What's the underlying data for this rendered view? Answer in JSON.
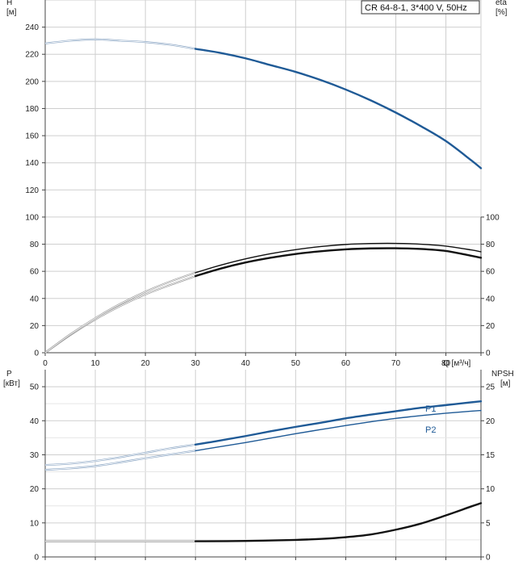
{
  "legend": "CR 64-8-1, 3*400 V, 50Hz",
  "chart_data": [
    {
      "id": "head_efficiency",
      "type": "line",
      "left_axis": {
        "label": "H",
        "unit": "[м]",
        "ylim": [
          0,
          240
        ],
        "ticks": [
          0,
          20,
          40,
          60,
          80,
          100,
          120,
          140,
          160,
          180,
          200,
          220,
          240
        ],
        "grid_to": 260
      },
      "right_axis": {
        "label": "eta",
        "unit": "[%]",
        "ylim": [
          0,
          100
        ],
        "ticks": [
          0,
          20,
          40,
          60,
          80,
          100
        ]
      },
      "x_axis": {
        "label": "Q [м³/ч]",
        "xlim": [
          0,
          87
        ],
        "ticks": [
          0,
          10,
          20,
          30,
          40,
          50,
          60,
          70,
          80
        ]
      },
      "series": [
        {
          "id": "H",
          "color": "#1f5a96",
          "axis": "left",
          "thin_until": 30,
          "x": [
            0,
            5,
            10,
            15,
            20,
            25,
            30,
            35,
            40,
            45,
            50,
            55,
            60,
            65,
            70,
            75,
            80,
            85,
            87
          ],
          "y": [
            228,
            230,
            231,
            230,
            229,
            227,
            224,
            221,
            217,
            212,
            207,
            201,
            194,
            186,
            177,
            167,
            156,
            142,
            136
          ]
        },
        {
          "id": "eta_a",
          "color": "#111111",
          "axis": "right",
          "thin_until": 30,
          "x": [
            0,
            5,
            10,
            15,
            20,
            25,
            30,
            35,
            40,
            45,
            50,
            55,
            60,
            65,
            70,
            75,
            80,
            85,
            87
          ],
          "y": [
            0,
            13,
            24.5,
            34.5,
            43,
            50,
            56.5,
            62,
            66.5,
            70,
            72.8,
            74.8,
            76.2,
            76.9,
            77,
            76.5,
            75,
            71.5,
            70
          ]
        },
        {
          "id": "eta_b",
          "color": "#111111",
          "axis": "right",
          "thin_until": 30,
          "x": [
            0,
            5,
            10,
            15,
            20,
            25,
            30,
            35,
            40,
            45,
            50,
            55,
            60,
            65,
            70,
            75,
            80,
            85,
            87
          ],
          "y": [
            0,
            13.5,
            25.5,
            36,
            45,
            52.5,
            59,
            64.5,
            69.2,
            73,
            76,
            78.3,
            79.8,
            80.5,
            80.6,
            80,
            78.6,
            75.8,
            74.4
          ]
        }
      ]
    },
    {
      "id": "power_npsh",
      "type": "line",
      "left_axis": {
        "label": "P",
        "unit": "[кВт]",
        "ylim": [
          0,
          55
        ],
        "ticks": [
          0,
          10,
          20,
          30,
          40,
          50
        ]
      },
      "right_axis": {
        "label": "NPSH",
        "unit": "[м]",
        "ylim": [
          0,
          27.5
        ],
        "ticks": [
          0,
          5,
          10,
          15,
          20,
          25
        ]
      },
      "x_axis": {
        "xlim": [
          0,
          87
        ]
      },
      "series": [
        {
          "id": "P1",
          "name": "P1",
          "color": "#1f5a96",
          "axis": "left",
          "thin_until": 30,
          "x": [
            0,
            5,
            10,
            15,
            20,
            25,
            30,
            35,
            40,
            45,
            50,
            55,
            60,
            65,
            70,
            75,
            80,
            85,
            87
          ],
          "y": [
            27.0,
            27.4,
            28.2,
            29.3,
            30.6,
            31.9,
            33.0,
            34.2,
            35.5,
            36.9,
            38.2,
            39.4,
            40.7,
            41.8,
            42.8,
            43.8,
            44.6,
            45.4,
            45.7
          ]
        },
        {
          "id": "P2",
          "name": "P2",
          "color": "#1f5a96",
          "axis": "left",
          "thin_until": 30,
          "x": [
            0,
            5,
            10,
            15,
            20,
            25,
            30,
            35,
            40,
            45,
            50,
            55,
            60,
            65,
            70,
            75,
            80,
            85,
            87
          ],
          "y": [
            25.6,
            26.0,
            26.7,
            27.8,
            29.0,
            30.1,
            31.2,
            32.4,
            33.6,
            34.9,
            36.2,
            37.4,
            38.6,
            39.7,
            40.7,
            41.5,
            42.2,
            42.8,
            43.0
          ]
        },
        {
          "id": "NPSH",
          "color": "#111111",
          "axis": "right",
          "thin_until": 30,
          "x": [
            0,
            10,
            20,
            30,
            40,
            50,
            55,
            60,
            65,
            70,
            75,
            80,
            85,
            87
          ],
          "y": [
            2.3,
            2.3,
            2.3,
            2.3,
            2.35,
            2.5,
            2.65,
            2.9,
            3.3,
            4.0,
            4.9,
            6.1,
            7.4,
            7.9
          ]
        }
      ]
    }
  ]
}
